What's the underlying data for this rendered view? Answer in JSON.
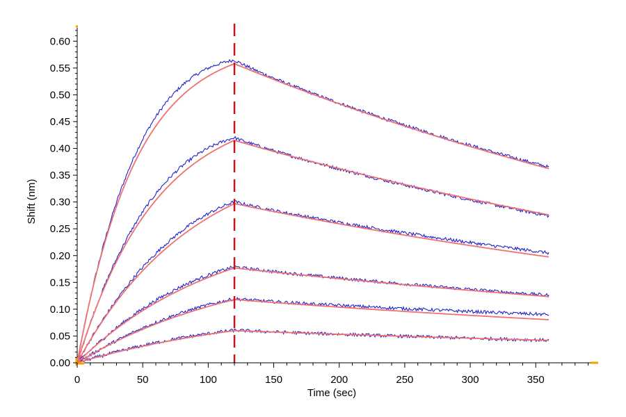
{
  "chart_data": {
    "type": "line",
    "xlabel": "Time (sec)",
    "ylabel": "Shift (nm)",
    "xlim": [
      0,
      395
    ],
    "ylim": [
      0,
      0.625
    ],
    "x_ticks": [
      0,
      50,
      100,
      150,
      200,
      250,
      300,
      350
    ],
    "x_tick_labels": [
      "0",
      "50",
      "100",
      "150",
      "200",
      "250",
      "300",
      "350"
    ],
    "y_ticks": [
      0,
      0.05,
      0.1,
      0.15,
      0.2,
      0.25,
      0.3,
      0.35,
      0.4,
      0.45,
      0.5,
      0.55,
      0.6
    ],
    "y_tick_labels": [
      "0.00",
      "0.05",
      "0.10",
      "0.15",
      "0.20",
      "0.25",
      "0.30",
      "0.35",
      "0.40",
      "0.45",
      "0.50",
      "0.55",
      "0.60"
    ],
    "grid": false,
    "annotations": [
      {
        "type": "vertical-dashed-line",
        "x": 120,
        "color": "#c0141e"
      }
    ],
    "colors": {
      "measured": "#2020c8",
      "fit": "#f07070",
      "axis_marker": "#f5a000"
    },
    "curves": [
      {
        "association_max": 0.558,
        "assoc_tau": 45,
        "dissoc_k": 0.0018,
        "measured_end": 0.365
      },
      {
        "association_max": 0.415,
        "assoc_tau": 60,
        "dissoc_k": 0.0017,
        "measured_end": 0.274
      },
      {
        "association_max": 0.297,
        "assoc_tau": 90,
        "dissoc_k": 0.0017,
        "measured_end": 0.205
      },
      {
        "association_max": 0.177,
        "assoc_tau": 110,
        "dissoc_k": 0.0015,
        "measured_end": 0.126
      },
      {
        "association_max": 0.118,
        "assoc_tau": 130,
        "dissoc_k": 0.0016,
        "measured_end": 0.09
      },
      {
        "association_max": 0.06,
        "assoc_tau": 150,
        "dissoc_k": 0.0015,
        "measured_end": 0.042
      }
    ]
  }
}
